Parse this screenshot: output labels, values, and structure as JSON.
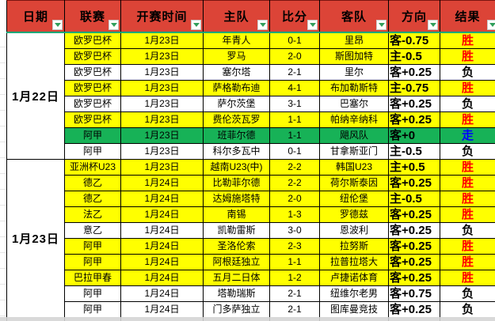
{
  "header": {
    "columns": [
      "日期",
      "联赛",
      "开赛时间",
      "主队",
      "比分",
      "客队",
      "方向",
      "结果"
    ],
    "filter_icon": "filter-dropdown-arrow"
  },
  "date_groups": [
    {
      "date": "1月22日",
      "rows": 8
    },
    {
      "date": "1月23日",
      "rows": 10
    }
  ],
  "rows": [
    {
      "league": "欧罗巴杯",
      "time": "1月23日",
      "home": "年青人",
      "score": "0-1",
      "away": "里昂",
      "direction": "客-0.75",
      "result": "胜",
      "result_type": "win",
      "row_color": "yellow"
    },
    {
      "league": "欧罗巴杯",
      "time": "1月23日",
      "home": "罗马",
      "score": "2-0",
      "away": "斯图加特",
      "direction": "主-0.5",
      "result": "胜",
      "result_type": "win",
      "row_color": "yellow"
    },
    {
      "league": "欧罗巴杯",
      "time": "1月23日",
      "home": "塞尔塔",
      "score": "2-1",
      "away": "里尔",
      "direction": "客+0.25",
      "result": "负",
      "result_type": "lose",
      "row_color": "white"
    },
    {
      "league": "欧罗巴杯",
      "time": "1月23日",
      "home": "萨格勒布迪",
      "score": "4-1",
      "away": "布加勒斯特",
      "direction": "主-0.75",
      "result": "胜",
      "result_type": "win",
      "row_color": "yellow"
    },
    {
      "league": "欧罗巴杯",
      "time": "1月23日",
      "home": "萨尔茨堡",
      "score": "3-1",
      "away": "巴塞尔",
      "direction": "客+0.25",
      "result": "负",
      "result_type": "lose",
      "row_color": "white"
    },
    {
      "league": "欧罗巴杯",
      "time": "1月23日",
      "home": "费伦茨瓦罗",
      "score": "1-1",
      "away": "帕纳辛纳科",
      "direction": "客+0.25",
      "result": "胜",
      "result_type": "win",
      "row_color": "yellow"
    },
    {
      "league": "阿甲",
      "time": "1月23日",
      "home": "班菲尔德",
      "score": "1-1",
      "away": "飓风队",
      "direction": "客+0",
      "result": "走",
      "result_type": "draw",
      "row_color": "green"
    },
    {
      "league": "阿甲",
      "time": "1月23日",
      "home": "科尔多瓦中",
      "score": "0-1",
      "away": "甘拿斯亚门",
      "direction": "主-0.5",
      "result": "负",
      "result_type": "lose",
      "row_color": "white"
    },
    {
      "league": "亚洲杯U23",
      "time": "1月23日",
      "home": "越南U23(中)",
      "score": "2-2",
      "away": "韩国U23",
      "direction": "主+0.5",
      "result": "胜",
      "result_type": "win",
      "row_color": "yellow"
    },
    {
      "league": "德乙",
      "time": "1月24日",
      "home": "比勒菲尔德",
      "score": "2-2",
      "away": "荷尔斯泰因",
      "direction": "客+0.25",
      "result": "胜",
      "result_type": "win",
      "row_color": "yellow"
    },
    {
      "league": "德乙",
      "time": "1月24日",
      "home": "达姆施塔特",
      "score": "2-0",
      "away": "纽伦堡",
      "direction": "主-0.5",
      "result": "胜",
      "result_type": "win",
      "row_color": "yellow"
    },
    {
      "league": "法乙",
      "time": "1月24日",
      "home": "南锡",
      "score": "1-3",
      "away": "罗德兹",
      "direction": "客+0.25",
      "result": "胜",
      "result_type": "win",
      "row_color": "yellow"
    },
    {
      "league": "意乙",
      "time": "1月24日",
      "home": "凯勒雷斯",
      "score": "3-0",
      "away": "恩波利",
      "direction": "客+0.25",
      "result": "负",
      "result_type": "lose",
      "row_color": "white"
    },
    {
      "league": "阿甲",
      "time": "1月24日",
      "home": "圣洛伦索",
      "score": "2-3",
      "away": "拉努斯",
      "direction": "客+0.25",
      "result": "胜",
      "result_type": "win",
      "row_color": "yellow"
    },
    {
      "league": "阿甲",
      "time": "1月24日",
      "home": "阿根廷独立",
      "score": "1-1",
      "away": "拉普拉塔大",
      "direction": "客+0.25",
      "result": "胜",
      "result_type": "win",
      "row_color": "yellow"
    },
    {
      "league": "巴拉甲春",
      "time": "1月24日",
      "home": "五月二日体",
      "score": "1-2",
      "away": "卢捷诺体育",
      "direction": "客+0.25",
      "result": "胜",
      "result_type": "win",
      "row_color": "yellow"
    },
    {
      "league": "阿甲",
      "time": "1月24日",
      "home": "塔勒瑞斯",
      "score": "2-1",
      "away": "纽维尔老男",
      "direction": "客+0.75",
      "result": "负",
      "result_type": "lose",
      "row_color": "white"
    },
    {
      "league": "阿甲",
      "time": "1月24日",
      "home": "门多萨独立",
      "score": "2-1",
      "away": "图库曼竞技",
      "direction": "客+0.25",
      "result": "负",
      "result_type": "lose",
      "row_color": "white"
    }
  ],
  "colors": {
    "header_bg": "#dc4437",
    "row_yellow": "#ffff00",
    "row_green": "#17b257",
    "teal_line": "#00a878",
    "arrow_green": "#2f9e5b",
    "result_win": "#ff0000",
    "result_draw": "#0000ff",
    "result_lose": "#000000"
  }
}
